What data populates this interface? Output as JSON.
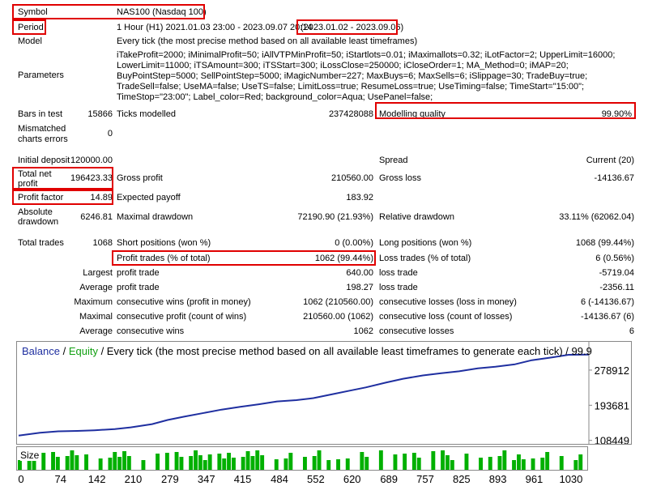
{
  "report": {
    "symbol_label": "Symbol",
    "symbol_value": "NAS100 (Nasdaq 100)",
    "period_label": "Period",
    "period_value": "1 Hour (H1) 2021.01.03 23:00 - 2023.09.07 20:14",
    "period_range": "(2023.01.02 - 2023.09.06)",
    "model_label": "Model",
    "model_value": "Every tick (the most precise method based on all available least timeframes)",
    "parameters_label": "Parameters",
    "parameters_value": "iTakeProfit=2000; iMinimalProfit=50; iAllVTPMinProfit=50; iStartlots=0.01; iMaximallots=0.32; iLotFactor=2; UpperLimit=16000; LowerLimit=11000; iTSAmount=300; iTSStart=300; iLossClose=250000; iCloseOrder=1; MA_Method=0; iMAP=20; BuyPointStep=5000; SellPointStep=5000; iMagicNumber=227; MaxBuys=6; MaxSells=6; iSlippage=30; TradeBuy=true; TradeSell=false; UseMA=false; UseTS=false; LimitLoss=true; ResumeLoss=true; UseTiming=false; TimeStart=\"15:00\"; TimeStop=\"23:00\"; Label_color=Red; background_color=Aqua; UsePanel=false;",
    "bars_label": "Bars in test",
    "bars_value": "15866",
    "ticks_label": "Ticks modelled",
    "ticks_value": "237428088",
    "quality_label": "Modelling quality",
    "quality_value": "99.90%",
    "mismatched_label_1": "Mismatched",
    "mismatched_label_2": "charts errors",
    "mismatched_value": "0",
    "deposit_label": "Initial deposit",
    "deposit_value": "120000.00",
    "spread_label": "Spread",
    "spread_value": "Current (20)",
    "net_profit_label_1": "Total net",
    "net_profit_label_2": "profit",
    "net_profit_value": "196423.33",
    "gross_profit_label": "Gross profit",
    "gross_profit_value": "210560.00",
    "gross_loss_label": "Gross loss",
    "gross_loss_value": "-14136.67",
    "profit_factor_label": "Profit factor",
    "profit_factor_value": "14.89",
    "expected_payoff_label": "Expected payoff",
    "expected_payoff_value": "183.92",
    "abs_dd_label_1": "Absolute",
    "abs_dd_label_2": "drawdown",
    "abs_dd_value": "6246.81",
    "max_dd_label": "Maximal drawdown",
    "max_dd_value": "72190.90 (21.93%)",
    "rel_dd_label": "Relative drawdown",
    "rel_dd_value": "33.11% (62062.04)",
    "total_trades_label": "Total trades",
    "total_trades_value": "1068",
    "short_label": "Short positions (won %)",
    "short_value": "0 (0.00%)",
    "long_label": "Long positions (won %)",
    "long_value": "1068 (99.44%)",
    "profit_trades_label": "Profit trades (% of total)",
    "profit_trades_value": "1062 (99.44%)",
    "loss_trades_label": "Loss trades (% of total)",
    "loss_trades_value": "6 (0.56%)",
    "largest_label": "Largest",
    "largest_profit_label": "profit trade",
    "largest_profit_value": "640.00",
    "largest_loss_label": "loss trade",
    "largest_loss_value": "-5719.04",
    "average_label": "Average",
    "average_profit_label": "profit trade",
    "average_profit_value": "198.27",
    "average_loss_label": "loss trade",
    "average_loss_value": "-2356.11",
    "maximum_label": "Maximum",
    "max_consec_wins_label": "consecutive wins (profit in money)",
    "max_consec_wins_value": "1062 (210560.00)",
    "max_consec_losses_label": "consecutive losses (loss in money)",
    "max_consec_losses_value": "6 (-14136.67)",
    "maximal_label": "Maximal",
    "maximal_profit_label": "consecutive profit (count of wins)",
    "maximal_profit_value": "210560.00 (1062)",
    "maximal_loss_label": "consecutive loss (count of losses)",
    "maximal_loss_value": "-14136.67 (6)",
    "average2_label": "Average",
    "avg_consec_wins_label": "consecutive wins",
    "avg_consec_wins_value": "1062",
    "avg_consec_losses_label": "consecutive losses",
    "avg_consec_losses_value": "6"
  },
  "chart_header": {
    "balance": "Balance",
    "sep1": " / ",
    "equity": "Equity",
    "rest": " / Every tick (the most precise method based on all available least timeframes to generate each tick) / 99.9"
  },
  "size_label": "Size",
  "colors": {
    "balance": "#1f2fa0",
    "equity": "#12a012",
    "size_bar": "#00b000",
    "highlight_box": "#e00000"
  },
  "chart_data": {
    "type": "line",
    "y_ticks": [
      "278912",
      "193681",
      "108449"
    ],
    "x_ticks": [
      "0",
      "74",
      "142",
      "210",
      "279",
      "347",
      "415",
      "484",
      "552",
      "620",
      "689",
      "757",
      "825",
      "893",
      "961",
      "1030"
    ],
    "xlim": [
      0,
      1068
    ],
    "ylim": [
      100000,
      320000
    ],
    "series": [
      {
        "name": "Balance",
        "x": [
          0,
          40,
          74,
          110,
          142,
          180,
          210,
          250,
          279,
          310,
          347,
          380,
          415,
          450,
          484,
          520,
          552,
          590,
          620,
          650,
          689,
          720,
          757,
          790,
          825,
          860,
          893,
          930,
          961,
          1000,
          1030,
          1068
        ],
        "values": [
          120000,
          127000,
          130500,
          131500,
          133000,
          136000,
          140000,
          148000,
          158000,
          166000,
          175000,
          183000,
          190000,
          196000,
          203000,
          206000,
          211000,
          221000,
          229000,
          237000,
          249000,
          258000,
          266000,
          271000,
          276000,
          283000,
          287000,
          293000,
          303000,
          310000,
          316000,
          316400
        ]
      }
    ],
    "size_bars": [
      1,
      0,
      1,
      1,
      0,
      1,
      0,
      1,
      1,
      0,
      1,
      1,
      1,
      0,
      1,
      0,
      0,
      1,
      0,
      1,
      1,
      1,
      1,
      1,
      0,
      0,
      1,
      0,
      0,
      1,
      0,
      1,
      0,
      1,
      1,
      0,
      1,
      1,
      1,
      1,
      1,
      0,
      1,
      1,
      1,
      1,
      0,
      1,
      1,
      1,
      1,
      1,
      0,
      0,
      1,
      0,
      1,
      1,
      0,
      0,
      1,
      0,
      1,
      1,
      0,
      1,
      0,
      1,
      0,
      1,
      0,
      0,
      1,
      1,
      0,
      0,
      1,
      0,
      0,
      1,
      0,
      1,
      0,
      1,
      1,
      0,
      0,
      1,
      0,
      1,
      1,
      1,
      0,
      0,
      1,
      0,
      0,
      1,
      0,
      1,
      0,
      1,
      1,
      0,
      1,
      1,
      1,
      0,
      1,
      0,
      1,
      1,
      0,
      0,
      1,
      0,
      0,
      1,
      1,
      0
    ]
  }
}
